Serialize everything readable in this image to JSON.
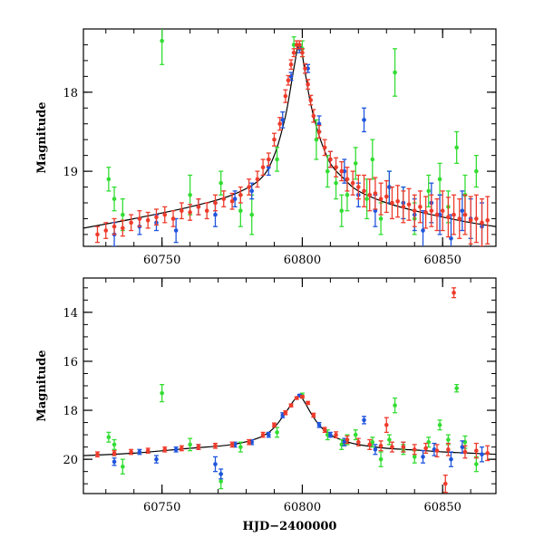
{
  "chart_data": [
    {
      "type": "scatter",
      "panel": "top",
      "xlabel": "",
      "ylabel": "Magnitude",
      "xlim": [
        60722,
        60869
      ],
      "ylim": [
        19.95,
        17.2
      ],
      "y_inverted": true,
      "x_ticks": [
        60750,
        60800,
        60850
      ],
      "y_ticks": [
        18,
        19
      ],
      "x_minor_step": 10,
      "y_minor_step": 0.2,
      "colors": {
        "green": "#33dd33",
        "blue": "#1f55dd",
        "red": "#ee3b2b",
        "model": "#000000"
      },
      "model_curve": {
        "x": [
          60722,
          60740,
          60760,
          60775,
          60785,
          60790,
          60794,
          60797,
          60799,
          60801,
          60803,
          60806,
          60810,
          60815,
          60820,
          60830,
          60840,
          60850,
          60860,
          60869
        ],
        "y": [
          19.72,
          19.6,
          19.45,
          19.3,
          19.1,
          18.8,
          18.3,
          17.7,
          17.38,
          17.75,
          18.15,
          18.55,
          18.9,
          19.1,
          19.25,
          19.4,
          19.5,
          19.58,
          19.65,
          19.7
        ]
      },
      "series": [
        {
          "color": "green",
          "x": [
            60731,
            60733,
            60736,
            60750,
            60760,
            60771,
            60778,
            60782,
            60791,
            60797,
            60800,
            60805,
            60809,
            60812,
            60814,
            60816,
            60819,
            60823,
            60825,
            60828,
            60831,
            60833,
            60836,
            60840,
            60845,
            60849,
            60852,
            60855,
            60858,
            60862
          ],
          "y": [
            19.1,
            19.35,
            19.55,
            17.35,
            19.3,
            19.15,
            19.5,
            19.55,
            18.85,
            17.4,
            17.45,
            18.6,
            19.0,
            19.15,
            19.5,
            19.3,
            18.9,
            19.35,
            18.85,
            19.6,
            19.2,
            17.75,
            19.4,
            19.6,
            19.25,
            19.1,
            19.45,
            18.7,
            19.3,
            19.0
          ],
          "err": [
            0.15,
            0.15,
            0.2,
            0.3,
            0.25,
            0.15,
            0.2,
            0.25,
            0.15,
            0.1,
            0.1,
            0.25,
            0.2,
            0.2,
            0.2,
            0.2,
            0.2,
            0.25,
            0.25,
            0.2,
            0.2,
            0.3,
            0.2,
            0.2,
            0.2,
            0.2,
            0.2,
            0.2,
            0.25,
            0.2
          ]
        },
        {
          "color": "blue",
          "x": [
            60733,
            60742,
            60748,
            60755,
            60763,
            60769,
            60776,
            60782,
            60788,
            60793,
            60796,
            60799,
            60802,
            60806,
            60810,
            60815,
            60820,
            60822,
            60826,
            60831,
            60836,
            60840,
            60843,
            60846,
            60849,
            60853,
            60857,
            60860,
            60864
          ],
          "y": [
            19.8,
            19.7,
            19.65,
            19.75,
            19.45,
            19.55,
            19.35,
            19.25,
            18.95,
            18.35,
            17.8,
            17.45,
            17.7,
            18.4,
            18.85,
            19.0,
            19.3,
            18.35,
            19.5,
            19.2,
            19.4,
            19.55,
            19.75,
            19.4,
            19.55,
            19.85,
            19.5,
            19.6,
            19.7
          ],
          "err": [
            0.15,
            0.1,
            0.1,
            0.15,
            0.1,
            0.15,
            0.1,
            0.1,
            0.1,
            0.1,
            0.05,
            0.05,
            0.05,
            0.1,
            0.1,
            0.15,
            0.15,
            0.15,
            0.2,
            0.2,
            0.2,
            0.2,
            0.25,
            0.25,
            0.25,
            0.3,
            0.25,
            0.25,
            0.3
          ]
        },
        {
          "color": "red",
          "x": [
            60727,
            60730,
            60733,
            60736,
            60739,
            60742,
            60745,
            60748,
            60751,
            60754,
            60757,
            60760,
            60763,
            60766,
            60769,
            60772,
            60775,
            60778,
            60781,
            60784,
            60786,
            60788,
            60790,
            60792,
            60794,
            60795,
            60796,
            60797,
            60798,
            60799,
            60800,
            60801,
            60802,
            60803,
            60804,
            60806,
            60808,
            60810,
            60812,
            60814,
            60816,
            60818,
            60820,
            60822,
            60824,
            60826,
            60828,
            60830,
            60832,
            60834,
            60836,
            60838,
            60840,
            60842,
            60844,
            60846,
            60848,
            60850,
            60852,
            60854,
            60856,
            60858,
            60860,
            60862,
            60864,
            60866
          ],
          "y": [
            19.8,
            19.75,
            19.7,
            19.72,
            19.65,
            19.6,
            19.62,
            19.58,
            19.55,
            19.6,
            19.5,
            19.52,
            19.45,
            19.5,
            19.4,
            19.35,
            19.38,
            19.3,
            19.2,
            19.1,
            18.95,
            18.85,
            18.6,
            18.4,
            18.05,
            17.85,
            17.65,
            17.5,
            17.4,
            17.4,
            17.5,
            17.7,
            17.9,
            18.1,
            18.3,
            18.5,
            18.7,
            18.85,
            18.95,
            19.0,
            19.1,
            19.15,
            19.2,
            19.25,
            19.3,
            19.28,
            19.35,
            19.32,
            19.4,
            19.38,
            19.45,
            19.42,
            19.5,
            19.45,
            19.52,
            19.5,
            19.55,
            19.5,
            19.58,
            19.55,
            19.6,
            19.55,
            19.62,
            19.6,
            19.65,
            19.62
          ],
          "err": [
            0.1,
            0.1,
            0.1,
            0.1,
            0.1,
            0.1,
            0.1,
            0.1,
            0.1,
            0.1,
            0.1,
            0.1,
            0.1,
            0.1,
            0.1,
            0.1,
            0.1,
            0.1,
            0.1,
            0.1,
            0.1,
            0.08,
            0.08,
            0.08,
            0.08,
            0.06,
            0.06,
            0.05,
            0.05,
            0.05,
            0.05,
            0.06,
            0.06,
            0.06,
            0.08,
            0.08,
            0.1,
            0.1,
            0.12,
            0.12,
            0.15,
            0.15,
            0.15,
            0.2,
            0.2,
            0.2,
            0.2,
            0.2,
            0.2,
            0.2,
            0.2,
            0.2,
            0.2,
            0.2,
            0.2,
            0.2,
            0.2,
            0.25,
            0.25,
            0.25,
            0.25,
            0.25,
            0.3,
            0.3,
            0.3,
            0.3
          ]
        }
      ]
    },
    {
      "type": "scatter",
      "panel": "bottom",
      "xlabel": "HJD−2400000",
      "ylabel": "Magnitude",
      "xlim": [
        60722,
        60869
      ],
      "ylim": [
        21.4,
        12.6
      ],
      "y_inverted": true,
      "x_ticks": [
        60750,
        60800,
        60850
      ],
      "y_ticks": [
        14,
        16,
        18,
        20
      ],
      "x_minor_step": 10,
      "y_minor_step": 0.5,
      "colors": {
        "green": "#33dd33",
        "blue": "#1f55dd",
        "red": "#ee3b2b",
        "model": "#000000"
      },
      "model_curve": {
        "x": [
          60722,
          60740,
          60760,
          60775,
          60785,
          60790,
          60794,
          60797,
          60799,
          60801,
          60803,
          60806,
          60810,
          60815,
          60820,
          60830,
          60840,
          60850,
          60860,
          60869
        ],
        "y": [
          19.85,
          19.75,
          19.55,
          19.4,
          19.1,
          18.7,
          18.1,
          17.6,
          17.4,
          17.7,
          18.1,
          18.6,
          19.0,
          19.25,
          19.4,
          19.55,
          19.62,
          19.7,
          19.75,
          19.8
        ]
      },
      "series": [
        {
          "color": "green",
          "x": [
            60731,
            60733,
            60736,
            60750,
            60760,
            60771,
            60778,
            60791,
            60800,
            60809,
            60814,
            60816,
            60819,
            60825,
            60828,
            60831,
            60833,
            60836,
            60840,
            60845,
            60849,
            60852,
            60855,
            60858,
            60862
          ],
          "y": [
            19.1,
            19.4,
            20.3,
            17.3,
            19.4,
            20.9,
            19.5,
            18.9,
            17.4,
            19.0,
            19.4,
            19.2,
            19.0,
            19.3,
            20.0,
            19.2,
            17.8,
            19.6,
            19.9,
            19.3,
            18.6,
            19.2,
            17.1,
            19.3,
            20.2
          ],
          "err": [
            0.2,
            0.2,
            0.3,
            0.35,
            0.25,
            0.3,
            0.2,
            0.2,
            0.1,
            0.2,
            0.2,
            0.2,
            0.2,
            0.2,
            0.3,
            0.2,
            0.3,
            0.2,
            0.25,
            0.2,
            0.2,
            0.2,
            0.15,
            0.25,
            0.3
          ]
        },
        {
          "color": "blue",
          "x": [
            60733,
            60742,
            60748,
            60755,
            60763,
            60769,
            60771,
            60776,
            60782,
            60788,
            60793,
            60799,
            60806,
            60810,
            60815,
            60822,
            60826,
            60836,
            60843,
            60847,
            60853,
            60857,
            60864
          ],
          "y": [
            20.1,
            19.7,
            20.0,
            19.6,
            19.5,
            20.2,
            20.6,
            19.4,
            19.3,
            19.0,
            18.2,
            17.4,
            18.6,
            19.0,
            19.3,
            18.4,
            19.6,
            19.5,
            19.9,
            19.6,
            20.0,
            19.5,
            19.8
          ],
          "err": [
            0.15,
            0.1,
            0.15,
            0.1,
            0.1,
            0.3,
            0.2,
            0.1,
            0.1,
            0.1,
            0.1,
            0.05,
            0.1,
            0.1,
            0.15,
            0.15,
            0.2,
            0.2,
            0.25,
            0.25,
            0.3,
            0.25,
            0.3
          ]
        },
        {
          "color": "red",
          "x": [
            60727,
            60733,
            60739,
            60745,
            60751,
            60757,
            60763,
            60769,
            60775,
            60781,
            60786,
            60790,
            60794,
            60796,
            60798,
            60800,
            60802,
            60804,
            60808,
            60812,
            60816,
            60820,
            60824,
            60828,
            60830,
            60832,
            60836,
            60840,
            60844,
            60848,
            60851,
            60852,
            60854,
            60858,
            60862,
            60866
          ],
          "y": [
            19.8,
            19.75,
            19.7,
            19.65,
            19.6,
            19.55,
            19.5,
            19.45,
            19.4,
            19.3,
            19.0,
            18.6,
            18.1,
            17.8,
            17.5,
            17.45,
            17.7,
            18.2,
            18.8,
            19.0,
            19.2,
            19.3,
            19.4,
            19.45,
            18.6,
            19.5,
            19.5,
            19.6,
            19.55,
            19.65,
            21.0,
            19.6,
            13.2,
            19.7,
            19.65,
            19.75
          ],
          "err": [
            0.1,
            0.1,
            0.1,
            0.1,
            0.1,
            0.1,
            0.1,
            0.1,
            0.1,
            0.1,
            0.1,
            0.08,
            0.08,
            0.06,
            0.05,
            0.05,
            0.06,
            0.08,
            0.1,
            0.12,
            0.15,
            0.15,
            0.2,
            0.2,
            0.3,
            0.2,
            0.2,
            0.2,
            0.2,
            0.25,
            0.35,
            0.25,
            0.2,
            0.25,
            0.3,
            0.3
          ]
        }
      ]
    }
  ]
}
